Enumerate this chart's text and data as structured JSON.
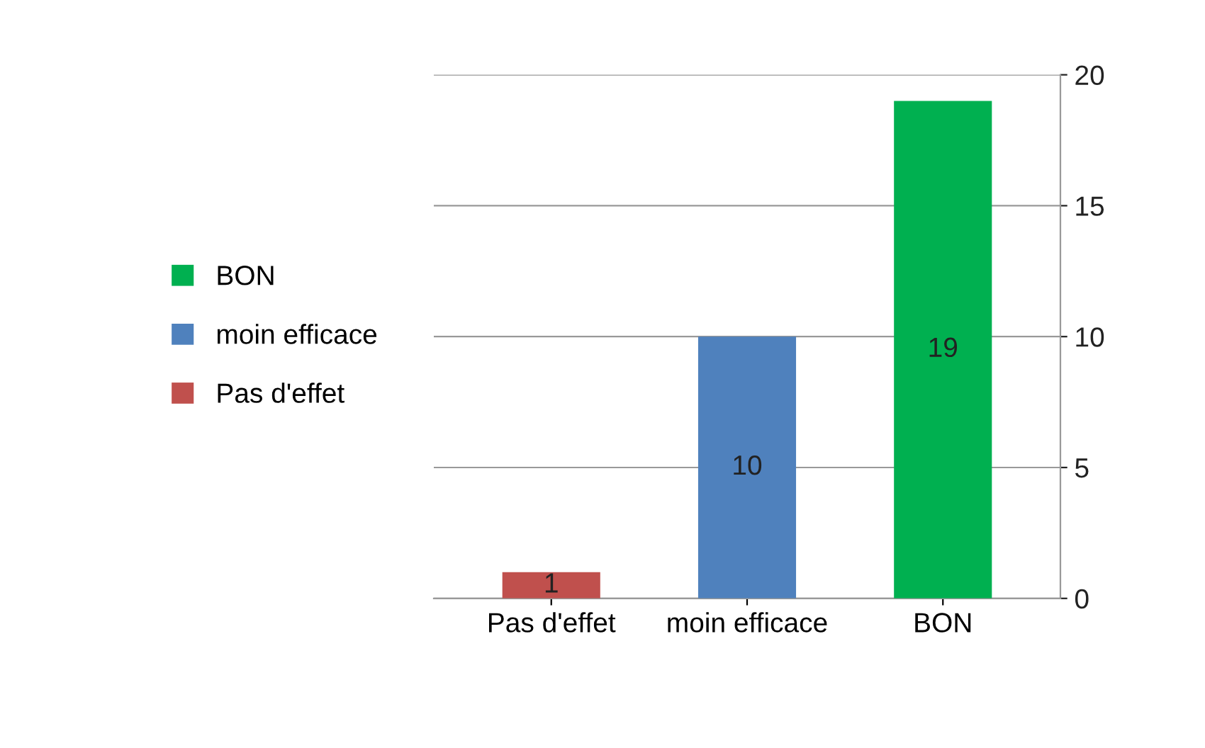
{
  "chart_data": {
    "type": "bar",
    "categories": [
      "Pas d'effet",
      "moin efficace",
      "BON"
    ],
    "series": [
      {
        "name": "Pas d'effet",
        "color": "#c0504d",
        "values": [
          1,
          null,
          null
        ]
      },
      {
        "name": "moin efficace",
        "color": "#4f81bd",
        "values": [
          null,
          10,
          null
        ]
      },
      {
        "name": "BON",
        "color": "#00b050",
        "values": [
          null,
          null,
          19
        ]
      }
    ],
    "ylim": [
      0,
      20
    ],
    "yticks": [
      0,
      5,
      10,
      15,
      20
    ],
    "grid": "y",
    "legend": "left",
    "data_labels": true
  }
}
